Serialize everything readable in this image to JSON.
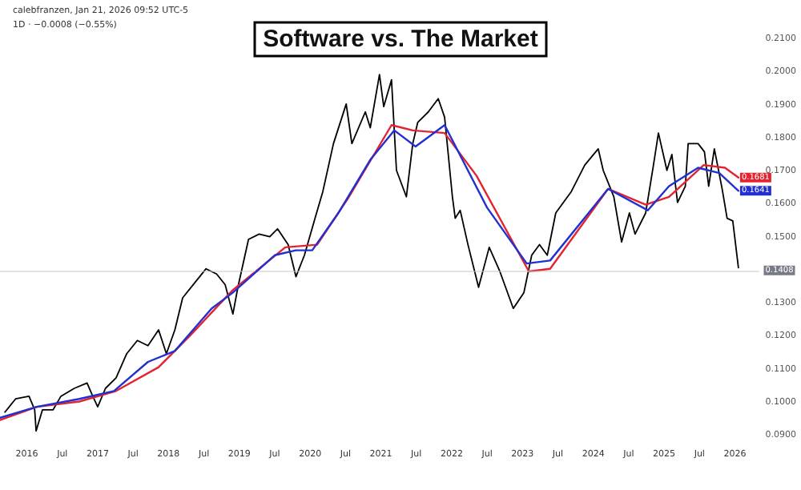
{
  "chart_data": {
    "type": "line",
    "title": "Software vs. The Market",
    "annotations": [
      "calebfranzen, Jan 21, 2026 09:52 UTC-5",
      "1D · −0.0008 (−0.55%)"
    ],
    "xlim": [
      2015.62,
      2026.34
    ],
    "xticks": [
      {
        "value": 2016,
        "label": "2016"
      },
      {
        "value": 2016.5,
        "label": "Jul"
      },
      {
        "value": 2017,
        "label": "2017"
      },
      {
        "value": 2017.5,
        "label": "Jul"
      },
      {
        "value": 2018,
        "label": "2018"
      },
      {
        "value": 2018.5,
        "label": "Jul"
      },
      {
        "value": 2019,
        "label": "2019"
      },
      {
        "value": 2019.5,
        "label": "Jul"
      },
      {
        "value": 2020,
        "label": "2020"
      },
      {
        "value": 2020.5,
        "label": "Jul"
      },
      {
        "value": 2021,
        "label": "2021"
      },
      {
        "value": 2021.5,
        "label": "Jul"
      },
      {
        "value": 2022,
        "label": "2022"
      },
      {
        "value": 2022.5,
        "label": "Jul"
      },
      {
        "value": 2023,
        "label": "2023"
      },
      {
        "value": 2023.5,
        "label": "Jul"
      },
      {
        "value": 2024,
        "label": "2024"
      },
      {
        "value": 2024.5,
        "label": "Jul"
      },
      {
        "value": 2025,
        "label": "2025"
      },
      {
        "value": 2025.5,
        "label": "Jul"
      },
      {
        "value": 2026,
        "label": "2026"
      }
    ],
    "ylim": [
      0.09,
      0.21
    ],
    "yticks": [
      {
        "value": 0.09,
        "label": "0.0900"
      },
      {
        "value": 0.1,
        "label": "0.1000"
      },
      {
        "value": 0.11,
        "label": "0.1100"
      },
      {
        "value": 0.12,
        "label": "0.1200"
      },
      {
        "value": 0.13,
        "label": "0.1300"
      },
      {
        "value": 0.15,
        "label": "0.1500"
      },
      {
        "value": 0.16,
        "label": "0.1600"
      },
      {
        "value": 0.17,
        "label": "0.1700"
      },
      {
        "value": 0.18,
        "label": "0.1800"
      },
      {
        "value": 0.19,
        "label": "0.1900"
      },
      {
        "value": 0.2,
        "label": "0.2000"
      },
      {
        "value": 0.21,
        "label": "0.2100"
      }
    ],
    "grid": false,
    "marker": "none",
    "line_style": "solid",
    "ref_lines": [
      {
        "axis": "y",
        "value": 0.1408,
        "label": "0.1408",
        "color": "#c8c8c8"
      }
    ],
    "series": [
      {
        "color": "#000000",
        "x": [
          2015.69,
          2015.84,
          2016.03,
          2016.11,
          2016.13,
          2016.22,
          2016.37,
          2016.48,
          2016.67,
          2016.85,
          2016.93,
          2017.0,
          2017.11,
          2017.26,
          2017.41,
          2017.56,
          2017.71,
          2017.86,
          2017.97,
          2018.09,
          2018.2,
          2018.38,
          2018.53,
          2018.68,
          2018.8,
          2018.91,
          2018.98,
          2019.13,
          2019.28,
          2019.43,
          2019.54,
          2019.69,
          2019.8,
          2019.92,
          2020.07,
          2020.18,
          2020.33,
          2020.51,
          2020.59,
          2020.78,
          2020.85,
          2020.98,
          2021.04,
          2021.15,
          2021.22,
          2021.36,
          2021.45,
          2021.52,
          2021.67,
          2021.81,
          2021.9,
          2022.01,
          2022.05,
          2022.12,
          2022.23,
          2022.38,
          2022.53,
          2022.68,
          2022.87,
          2023.02,
          2023.13,
          2023.24,
          2023.35,
          2023.47,
          2023.69,
          2023.88,
          2024.07,
          2024.14,
          2024.29,
          2024.4,
          2024.51,
          2024.59,
          2024.74,
          2024.85,
          2024.92,
          2025.04,
          2025.11,
          2025.19,
          2025.3,
          2025.34,
          2025.48,
          2025.57,
          2025.63,
          2025.71,
          2025.82,
          2025.89,
          2025.97,
          2026.05
        ],
        "values": [
          0.0971,
          0.1011,
          0.1019,
          0.0978,
          0.0914,
          0.0978,
          0.0978,
          0.1019,
          0.1043,
          0.1059,
          0.1019,
          0.0987,
          0.1043,
          0.1075,
          0.1148,
          0.1188,
          0.1172,
          0.122,
          0.1148,
          0.122,
          0.1317,
          0.1365,
          0.1405,
          0.1389,
          0.1357,
          0.1268,
          0.1349,
          0.1494,
          0.151,
          0.1502,
          0.1526,
          0.1478,
          0.1381,
          0.1446,
          0.1558,
          0.1639,
          0.1784,
          0.1904,
          0.1784,
          0.188,
          0.1832,
          0.1993,
          0.1896,
          0.1977,
          0.1703,
          0.1623,
          0.1784,
          0.1848,
          0.188,
          0.192,
          0.1864,
          0.1623,
          0.1558,
          0.1582,
          0.1478,
          0.1349,
          0.147,
          0.1397,
          0.1285,
          0.1333,
          0.1446,
          0.1478,
          0.1446,
          0.1574,
          0.1639,
          0.1719,
          0.1768,
          0.1703,
          0.1623,
          0.1486,
          0.1574,
          0.151,
          0.1574,
          0.1719,
          0.1816,
          0.1703,
          0.1751,
          0.1606,
          0.1655,
          0.1784,
          0.1784,
          0.1759,
          0.1655,
          0.1768,
          0.1647,
          0.1558,
          0.155,
          0.1408
        ]
      },
      {
        "color": "#e32430",
        "x": [
          2015.62,
          2016.14,
          2016.74,
          2017.26,
          2017.86,
          2018.31,
          2018.91,
          2019.65,
          2020.1,
          2020.55,
          2021.15,
          2021.45,
          2021.9,
          2022.35,
          2023.09,
          2023.39,
          2024.21,
          2024.74,
          2025.07,
          2025.56,
          2025.86,
          2026.05
        ],
        "values": [
          0.0947,
          0.0987,
          0.1003,
          0.1035,
          0.1107,
          0.1204,
          0.1341,
          0.147,
          0.1478,
          0.1623,
          0.184,
          0.1824,
          0.1816,
          0.1687,
          0.1397,
          0.1405,
          0.1647,
          0.1599,
          0.1623,
          0.1719,
          0.1711,
          0.1681
        ],
        "value_labels": [
          null,
          null,
          null,
          null,
          null,
          null,
          null,
          null,
          null,
          null,
          null,
          null,
          null,
          null,
          null,
          null,
          null,
          null,
          null,
          null,
          null,
          "0.1681"
        ]
      },
      {
        "color": "#2230cf",
        "x": [
          2015.62,
          2016.14,
          2016.74,
          2017.23,
          2017.71,
          2018.09,
          2018.61,
          2018.91,
          2019.5,
          2019.8,
          2020.03,
          2020.4,
          2020.85,
          2021.19,
          2021.49,
          2021.9,
          2022.5,
          2023.06,
          2023.39,
          2024.21,
          2024.77,
          2025.07,
          2025.48,
          2025.78,
          2026.05
        ],
        "values": [
          0.0954,
          0.0987,
          0.1011,
          0.1035,
          0.1123,
          0.1156,
          0.1285,
          0.1333,
          0.1446,
          0.1461,
          0.1461,
          0.1574,
          0.1735,
          0.1824,
          0.1775,
          0.184,
          0.159,
          0.1421,
          0.143,
          0.1647,
          0.1582,
          0.1655,
          0.1711,
          0.1695,
          0.1641
        ],
        "value_labels": [
          null,
          null,
          null,
          null,
          null,
          null,
          null,
          null,
          null,
          null,
          null,
          null,
          null,
          null,
          null,
          null,
          null,
          null,
          null,
          null,
          null,
          null,
          null,
          null,
          "0.1641"
        ]
      }
    ]
  }
}
